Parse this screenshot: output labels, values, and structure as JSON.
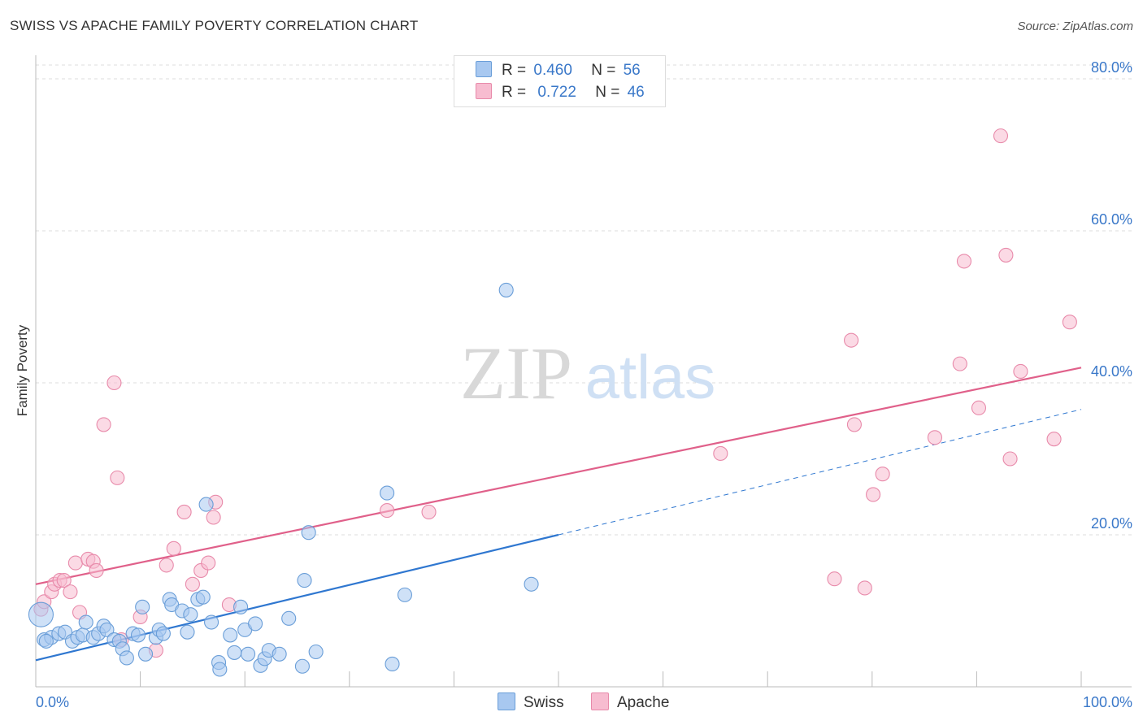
{
  "title": "SWISS VS APACHE FAMILY POVERTY CORRELATION CHART",
  "source": "Source: ZipAtlas.com",
  "legend": {
    "swiss": {
      "r_label": "R =",
      "r_value": "0.460",
      "n_label": "N =",
      "n_value": "56"
    },
    "apache": {
      "r_label": "R =",
      "r_value": "0.722",
      "n_label": "N =",
      "n_value": "46"
    }
  },
  "bottom_legend": {
    "swiss": "Swiss",
    "apache": "Apache"
  },
  "watermark": {
    "zip": "ZIP",
    "atlas": "atlas"
  },
  "colors": {
    "swiss_fill": "#a8c8f0",
    "swiss_stroke": "#6a9ed8",
    "swiss_line": "#2f77d0",
    "apache_fill": "#f7bcd0",
    "apache_stroke": "#e88aaa",
    "apache_line": "#e0608a",
    "tick_label": "#3a78c9",
    "grid": "#dddddd"
  },
  "chart_data": {
    "type": "scatter",
    "title": "SWISS VS APACHE FAMILY POVERTY CORRELATION CHART",
    "xlabel": "",
    "ylabel": "Family Poverty",
    "xlim": [
      0,
      100
    ],
    "ylim": [
      0,
      80
    ],
    "x_tick_labels": [
      "0.0%",
      "100.0%"
    ],
    "y_ticks": [
      20,
      40,
      60,
      80
    ],
    "y_tick_labels": [
      "20.0%",
      "40.0%",
      "60.0%",
      "80.0%"
    ],
    "grid": true,
    "series": [
      {
        "name": "Swiss",
        "r": 0.46,
        "n": 56,
        "trend": {
          "x0": 0,
          "y0": 3.5,
          "x1": 50,
          "y1": 20,
          "dashed_to_x": 100,
          "dashed_to_y": 36.5
        },
        "points": [
          [
            0.5,
            9.5
          ],
          [
            0.8,
            6.2
          ],
          [
            1.5,
            6.5
          ],
          [
            2.2,
            7.0
          ],
          [
            2.8,
            7.2
          ],
          [
            3.5,
            6.0
          ],
          [
            4.0,
            6.5
          ],
          [
            4.5,
            6.8
          ],
          [
            4.8,
            8.5
          ],
          [
            5.5,
            6.5
          ],
          [
            6.0,
            7.0
          ],
          [
            6.5,
            8.0
          ],
          [
            6.8,
            7.5
          ],
          [
            7.5,
            6.2
          ],
          [
            8.0,
            6.0
          ],
          [
            8.3,
            5.0
          ],
          [
            8.7,
            3.8
          ],
          [
            9.3,
            7.0
          ],
          [
            9.8,
            6.8
          ],
          [
            10.2,
            10.5
          ],
          [
            10.5,
            4.3
          ],
          [
            11.5,
            6.5
          ],
          [
            11.8,
            7.5
          ],
          [
            12.2,
            7.0
          ],
          [
            12.8,
            11.5
          ],
          [
            13.0,
            10.8
          ],
          [
            14.0,
            10.0
          ],
          [
            14.5,
            7.2
          ],
          [
            14.8,
            9.5
          ],
          [
            15.5,
            11.5
          ],
          [
            16.0,
            11.8
          ],
          [
            16.3,
            24.0
          ],
          [
            16.8,
            8.5
          ],
          [
            17.5,
            3.2
          ],
          [
            17.6,
            2.3
          ],
          [
            18.6,
            6.8
          ],
          [
            19.0,
            4.5
          ],
          [
            19.6,
            10.5
          ],
          [
            20.0,
            7.5
          ],
          [
            20.3,
            4.3
          ],
          [
            21.0,
            8.3
          ],
          [
            21.5,
            2.8
          ],
          [
            21.9,
            3.7
          ],
          [
            22.3,
            4.8
          ],
          [
            23.3,
            4.3
          ],
          [
            24.2,
            9.0
          ],
          [
            25.5,
            2.7
          ],
          [
            25.7,
            14.0
          ],
          [
            26.1,
            20.3
          ],
          [
            26.8,
            4.6
          ],
          [
            33.6,
            25.5
          ],
          [
            34.1,
            3.0
          ],
          [
            35.3,
            12.1
          ],
          [
            45.0,
            52.2
          ],
          [
            47.4,
            13.5
          ],
          [
            1.0,
            6.0
          ]
        ]
      },
      {
        "name": "Apache",
        "r": 0.722,
        "n": 46,
        "trend": {
          "x0": 0,
          "y0": 13.5,
          "x1": 100,
          "y1": 42.0
        },
        "points": [
          [
            0.5,
            10.2
          ],
          [
            0.8,
            11.2
          ],
          [
            1.5,
            12.5
          ],
          [
            1.8,
            13.5
          ],
          [
            2.3,
            14.0
          ],
          [
            2.7,
            14.0
          ],
          [
            3.3,
            12.5
          ],
          [
            3.8,
            16.3
          ],
          [
            4.2,
            9.8
          ],
          [
            5.0,
            16.8
          ],
          [
            5.5,
            16.5
          ],
          [
            5.8,
            15.3
          ],
          [
            6.5,
            34.5
          ],
          [
            7.5,
            40.0
          ],
          [
            7.8,
            27.5
          ],
          [
            8.2,
            6.2
          ],
          [
            10.0,
            9.2
          ],
          [
            11.5,
            4.8
          ],
          [
            12.5,
            16.0
          ],
          [
            13.2,
            18.2
          ],
          [
            14.2,
            23.0
          ],
          [
            15.0,
            13.5
          ],
          [
            15.8,
            15.3
          ],
          [
            16.5,
            16.3
          ],
          [
            17.0,
            22.3
          ],
          [
            17.2,
            24.3
          ],
          [
            18.5,
            10.8
          ],
          [
            33.6,
            23.2
          ],
          [
            37.6,
            23.0
          ],
          [
            65.5,
            30.7
          ],
          [
            76.4,
            14.2
          ],
          [
            78.0,
            45.6
          ],
          [
            78.3,
            34.5
          ],
          [
            79.3,
            13.0
          ],
          [
            80.1,
            25.3
          ],
          [
            81.0,
            28.0
          ],
          [
            86.0,
            32.8
          ],
          [
            88.4,
            42.5
          ],
          [
            88.8,
            56.0
          ],
          [
            90.2,
            36.7
          ],
          [
            92.3,
            72.5
          ],
          [
            92.8,
            56.8
          ],
          [
            93.2,
            30.0
          ],
          [
            94.2,
            41.5
          ],
          [
            97.4,
            32.6
          ],
          [
            98.9,
            48.0
          ]
        ]
      }
    ]
  }
}
